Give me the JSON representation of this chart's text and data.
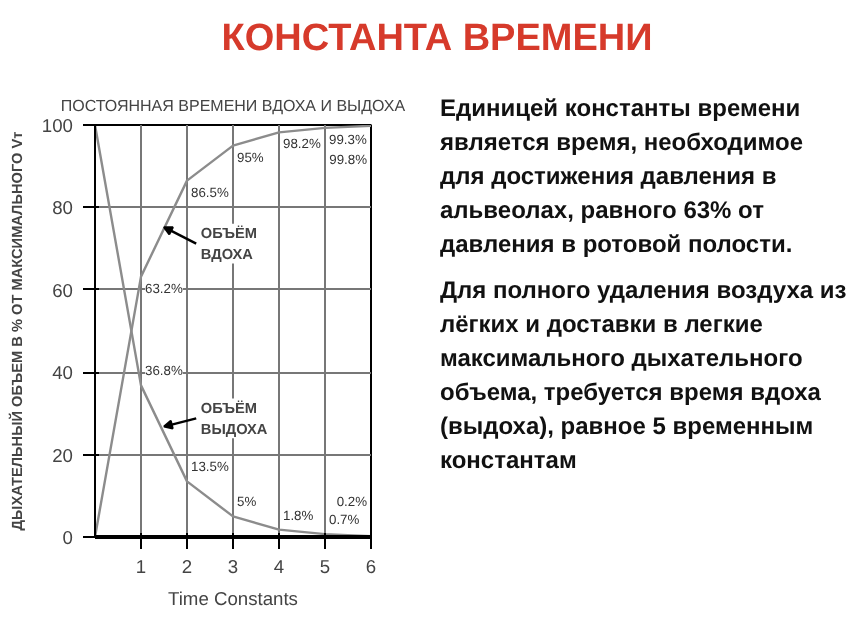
{
  "chart_data": {
    "type": "line",
    "title": "КОНСТАНТА ВРЕМЕНИ",
    "subtitle": "ПОСТОЯННАЯ ВРЕМЕНИ ВДОХА И ВЫДОХА",
    "xlabel": "Time Constants",
    "ylabel": "ДЫХАТЕЛЬНЫЙ ОБЪЕМ В % ОТ МАКСИМАЛЬНОГО Vт",
    "x": [
      0,
      1,
      2,
      3,
      4,
      5,
      6
    ],
    "series": [
      {
        "name": "ОБЪЁМ ВДОХА",
        "color": "#8c8c8c",
        "values": [
          0,
          63.2,
          86.5,
          95,
          98.2,
          99.3,
          99.8
        ],
        "value_labels": [
          null,
          "63.2%",
          "86.5%",
          "95%",
          "98.2%",
          "99.3%",
          "99.8%"
        ]
      },
      {
        "name": "ОБЪЁМ ВЫДОХА",
        "color": "#8c8c8c",
        "values": [
          100,
          36.8,
          13.5,
          5,
          1.8,
          0.7,
          0.2
        ],
        "value_labels": [
          null,
          "36.8%",
          "13.5%",
          "5%",
          "1.8%",
          "0.7%",
          "0.2%"
        ]
      }
    ],
    "xlim": [
      0,
      6
    ],
    "ylim": [
      0,
      100
    ],
    "xticks": [
      1,
      2,
      3,
      4,
      5,
      6
    ],
    "yticks": [
      0,
      20,
      40,
      60,
      80,
      100
    ],
    "grid": true,
    "legend": false,
    "marker": "none",
    "line_style": "solid",
    "annotations": [
      "Единицей константы времени является время, необходимое для достижения давления в альвеолах, равного 63% от давления в ротовой полости.",
      "Для полного удаления воздуха из лёгких и доставки в легкие максимального дыхательного объема, требуется время вдоха (выдоха), равное 5 временным константам"
    ]
  }
}
